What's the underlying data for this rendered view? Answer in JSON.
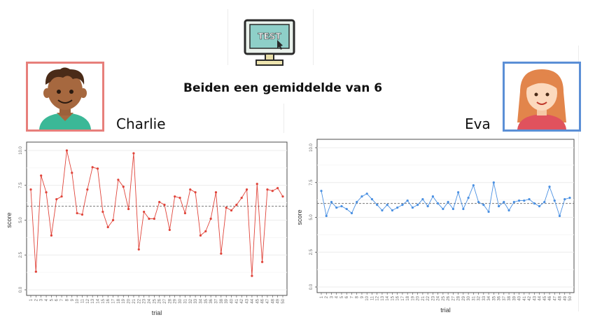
{
  "heading": "Beiden een gemiddelde van 6",
  "monitor": {
    "screen_text": "TEST",
    "icon": "computer-monitor-test-icon"
  },
  "persons": [
    {
      "name": "Charlie",
      "avatar_icon": "boy-avatar-icon",
      "border_color": "#e77f7b"
    },
    {
      "name": "Eva",
      "avatar_icon": "girl-avatar-icon",
      "border_color": "#5b8fd6"
    }
  ],
  "chart_data": [
    {
      "type": "line",
      "xlabel": "trial",
      "ylabel": "score",
      "ylim": [
        0,
        10
      ],
      "yticks": [
        "0.0",
        "2.5",
        "5.0",
        "7.5",
        "10.0"
      ],
      "grid": true,
      "color": "#e0443a",
      "mean_line": 6,
      "series": [
        {
          "x": [
            1,
            2,
            3,
            4,
            5,
            6,
            7,
            8,
            9,
            10,
            11,
            12,
            13,
            14,
            15,
            16,
            17,
            18,
            19,
            20,
            21,
            22,
            23,
            24,
            25,
            26,
            27,
            28,
            29,
            30,
            31,
            32,
            33,
            34,
            35,
            36,
            37,
            38,
            39,
            40,
            41,
            42,
            43,
            44,
            45,
            46,
            47,
            48,
            49,
            50
          ],
          "values": [
            7.2,
            1.3,
            8.2,
            7.0,
            3.9,
            6.5,
            6.7,
            10.0,
            8.4,
            5.5,
            5.4,
            7.2,
            8.8,
            8.7,
            5.6,
            4.5,
            5.0,
            7.9,
            7.4,
            5.8,
            9.8,
            2.9,
            5.6,
            5.1,
            5.1,
            6.3,
            6.1,
            4.3,
            6.7,
            6.6,
            5.5,
            7.2,
            7.0,
            3.9,
            4.2,
            5.1,
            7.0,
            2.6,
            5.9,
            5.7,
            6.1,
            6.6,
            7.2,
            1.0,
            7.6,
            2.0,
            7.2,
            7.1,
            7.3,
            6.7
          ]
        }
      ]
    },
    {
      "type": "line",
      "xlabel": "trial",
      "ylabel": "score",
      "ylim": [
        0,
        10
      ],
      "yticks": [
        "0.0",
        "2.5",
        "5.0",
        "7.5",
        "10.0"
      ],
      "grid": true,
      "color": "#4a90e2",
      "mean_line": 6,
      "series": [
        {
          "x": [
            1,
            2,
            3,
            4,
            5,
            6,
            7,
            8,
            9,
            10,
            11,
            12,
            13,
            14,
            15,
            16,
            17,
            18,
            19,
            20,
            21,
            22,
            23,
            24,
            25,
            26,
            27,
            28,
            29,
            30,
            31,
            32,
            33,
            34,
            35,
            36,
            37,
            38,
            39,
            40,
            41,
            42,
            43,
            44,
            45,
            46,
            47,
            48,
            49,
            50
          ],
          "values": [
            6.9,
            5.1,
            6.1,
            5.7,
            5.8,
            5.6,
            5.3,
            6.1,
            6.5,
            6.7,
            6.3,
            5.9,
            5.5,
            5.9,
            5.5,
            5.7,
            5.9,
            6.2,
            5.7,
            5.9,
            6.3,
            5.8,
            6.5,
            6.0,
            5.6,
            6.1,
            5.6,
            6.8,
            5.6,
            6.4,
            7.3,
            6.1,
            5.9,
            5.4,
            7.5,
            5.8,
            6.1,
            5.5,
            6.1,
            6.2,
            6.2,
            6.3,
            6.0,
            5.8,
            6.1,
            7.2,
            6.2,
            5.1,
            6.3,
            6.4
          ]
        }
      ]
    }
  ]
}
